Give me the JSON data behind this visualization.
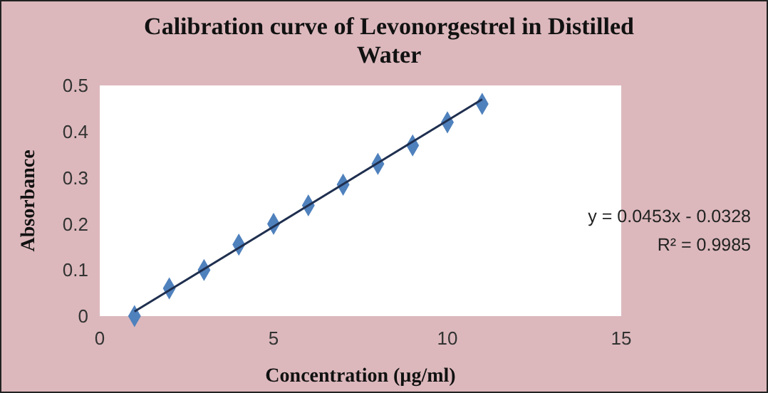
{
  "chart_data": {
    "type": "scatter",
    "title": "Calibration curve of Levonorgestrel in Distilled Water",
    "xlabel": "Concentration (µg/ml)",
    "ylabel": "Absorbance",
    "x": [
      1,
      2,
      3,
      4,
      5,
      6,
      7,
      8,
      9,
      10,
      11
    ],
    "marker": "diamond",
    "grid": false,
    "series": [
      {
        "color": "#4f81bd",
        "values": [
          0,
          0.06,
          0.1,
          0.155,
          0.2,
          0.24,
          0.285,
          0.33,
          0.37,
          0.42,
          0.46
        ]
      },
      {
        "type": "line",
        "marker": "none",
        "color": "#1f2f4f",
        "x": [
          1,
          11
        ],
        "values": [
          0.01,
          0.47
        ]
      }
    ],
    "xlim": [
      0,
      15
    ],
    "xticks": [
      0,
      5,
      10,
      15
    ],
    "ylim": [
      0,
      0.5
    ],
    "yticks": [
      0,
      0.1,
      0.2,
      0.3,
      0.4,
      0.5
    ],
    "annotations": [
      "y = 0.0453x - 0.0328",
      "R² = 0.9985"
    ]
  }
}
